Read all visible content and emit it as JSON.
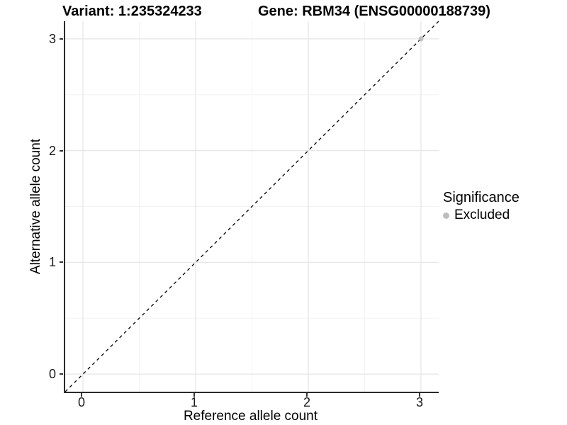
{
  "chart_data": {
    "type": "scatter",
    "title_left": "Variant: 1:235324233",
    "title_right": "Gene: RBM34 (ENSG00000188739)",
    "xlabel": "Reference allele count",
    "ylabel": "Alternative allele count",
    "xlim": [
      -0.1575,
      3.1575
    ],
    "ylim": [
      -0.1575,
      3.1575
    ],
    "xticks": [
      0,
      1,
      2,
      3
    ],
    "yticks": [
      0,
      1,
      2,
      3
    ],
    "minor_gridlines_at": [
      0.5,
      1.5,
      2.5
    ],
    "grid": true,
    "points": [
      {
        "x": 3,
        "y": 3,
        "significance": "Excluded"
      }
    ],
    "identity_line": {
      "slope": 1,
      "intercept": 0,
      "style": "dashed",
      "color": "#000000"
    },
    "legend": {
      "title": "Significance",
      "position": "right",
      "items": [
        {
          "label": "Excluded",
          "color": "#bdbdbd"
        }
      ]
    },
    "colors": {
      "grid_major": "#e6e6e6",
      "grid_minor": "#f2f2f2",
      "axis_line": "#2a2a2a",
      "tick_label": "#1a1a1a",
      "point": "#bdbdbd",
      "background": "#ffffff"
    }
  }
}
